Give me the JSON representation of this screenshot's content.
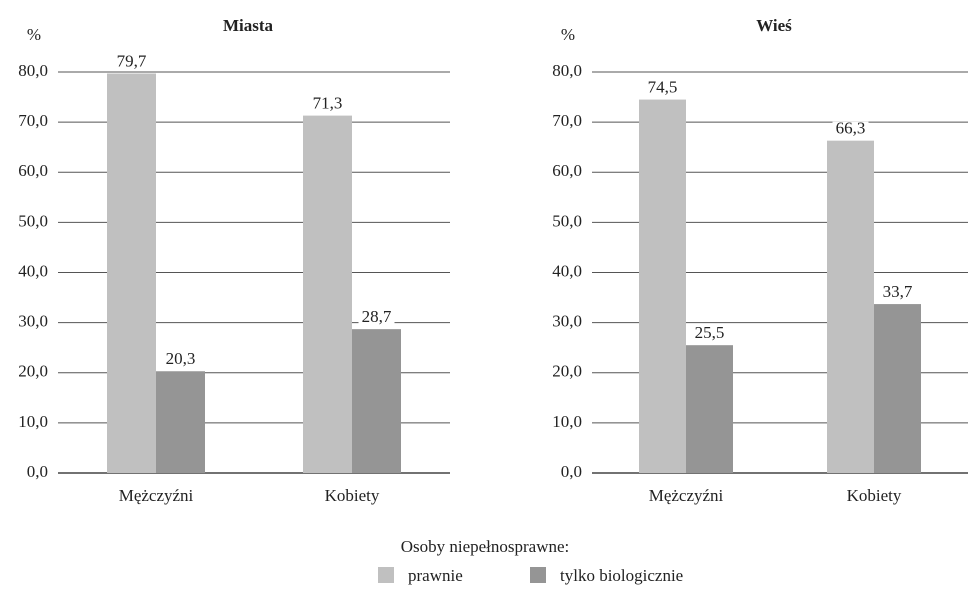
{
  "chart_data": [
    {
      "type": "bar",
      "title": "Miasta",
      "y_label": "%",
      "categories": [
        "Mężczyźni",
        "Kobiety"
      ],
      "series": [
        {
          "name": "prawnie",
          "color": "#c0c0c0",
          "values": [
            79.7,
            71.3
          ],
          "value_labels": [
            "79,7",
            "71,3"
          ]
        },
        {
          "name": "tylko biologicznie",
          "color": "#959595",
          "values": [
            20.3,
            28.7
          ],
          "value_labels": [
            "20,3",
            "28,7"
          ]
        }
      ],
      "ylim": [
        0,
        80
      ],
      "yticks": [
        {
          "value": 0,
          "label": "0,0"
        },
        {
          "value": 10,
          "label": "10,0"
        },
        {
          "value": 20,
          "label": "20,0"
        },
        {
          "value": 30,
          "label": "30,0"
        },
        {
          "value": 40,
          "label": "40,0"
        },
        {
          "value": 50,
          "label": "50,0"
        },
        {
          "value": 60,
          "label": "60,0"
        },
        {
          "value": 70,
          "label": "70,0"
        },
        {
          "value": 80,
          "label": "80,0"
        }
      ],
      "grid": true
    },
    {
      "type": "bar",
      "title": "Wieś",
      "y_label": "%",
      "categories": [
        "Mężczyźni",
        "Kobiety"
      ],
      "series": [
        {
          "name": "prawnie",
          "color": "#c0c0c0",
          "values": [
            74.5,
            66.3
          ],
          "value_labels": [
            "74,5",
            "66,3"
          ]
        },
        {
          "name": "tylko biologicznie",
          "color": "#959595",
          "values": [
            25.5,
            33.7
          ],
          "value_labels": [
            "25,5",
            "33,7"
          ]
        }
      ],
      "ylim": [
        0,
        80
      ],
      "yticks": [
        {
          "value": 0,
          "label": "0,0"
        },
        {
          "value": 10,
          "label": "10,0"
        },
        {
          "value": 20,
          "label": "20,0"
        },
        {
          "value": 30,
          "label": "30,0"
        },
        {
          "value": 40,
          "label": "40,0"
        },
        {
          "value": 50,
          "label": "50,0"
        },
        {
          "value": 60,
          "label": "60,0"
        },
        {
          "value": 70,
          "label": "70,0"
        },
        {
          "value": 80,
          "label": "80,0"
        }
      ],
      "grid": true
    }
  ],
  "legend_title": "Osoby niepełnosprawne:"
}
